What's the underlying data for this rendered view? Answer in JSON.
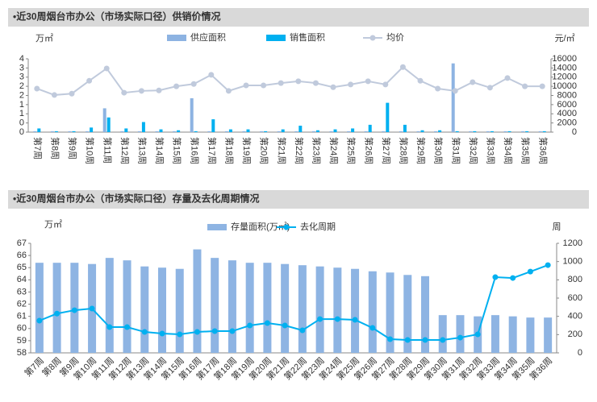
{
  "chart_data": [
    {
      "type": "bar",
      "title": "•近30周烟台市办公（市场实际口径）供销价情况",
      "y_label": "万㎡",
      "y2_label": "元/㎡",
      "categories": [
        "第7周",
        "第8周",
        "第9周",
        "第10周",
        "第11周",
        "第12周",
        "第13周",
        "第14周",
        "第15周",
        "第16周",
        "第17周",
        "第18周",
        "第19周",
        "第20周",
        "第21周",
        "第22周",
        "第23周",
        "第24周",
        "第25周",
        "第26周",
        "第27周",
        "第28周",
        "第29周",
        "第30周",
        "第31周",
        "第32周",
        "第33周",
        "第34周",
        "第35周",
        "第36周"
      ],
      "series": [
        {
          "name": "供应面积",
          "type": "bar",
          "color": "#8db3e2",
          "values": [
            0.05,
            0.05,
            0.05,
            0.05,
            1.3,
            0.05,
            0.05,
            0.05,
            0.05,
            1.85,
            0.05,
            0.05,
            0.05,
            0.05,
            0.05,
            0.05,
            0.05,
            0.05,
            0.05,
            0.05,
            0.05,
            0.05,
            0.05,
            0.05,
            3.75,
            0.05,
            0.05,
            0.05,
            0.05,
            0.05
          ]
        },
        {
          "name": "销售面积",
          "type": "bar",
          "color": "#00b0f0",
          "values": [
            0.2,
            0.05,
            0.05,
            0.25,
            0.8,
            0.2,
            0.55,
            0.15,
            0.1,
            0.05,
            0.7,
            0.15,
            0.15,
            0.05,
            0.15,
            0.35,
            0.1,
            0.15,
            0.2,
            0.4,
            1.6,
            0.4,
            0.1,
            0.1,
            0.05,
            0.05,
            0.05,
            0.05,
            0.05,
            0.05
          ]
        },
        {
          "name": "均价",
          "type": "line",
          "axis": "y2",
          "color": "#c0cadc",
          "values": [
            9500,
            8100,
            8400,
            11200,
            13900,
            8600,
            9000,
            9100,
            10000,
            10500,
            12500,
            9000,
            10200,
            10200,
            10700,
            11100,
            10700,
            9800,
            10400,
            11100,
            10400,
            14200,
            11200,
            9500,
            9000,
            10900,
            9700,
            11800,
            10000,
            10000
          ]
        }
      ],
      "ylim": [
        0,
        4
      ],
      "yticks": [
        0,
        {
          "value": 0.5,
          "label": "0"
        },
        1,
        {
          "value": 1.5,
          "label": "1"
        },
        2,
        {
          "value": 2.5,
          "label": "2"
        },
        3,
        {
          "value": 3.5,
          "label": "3"
        },
        4
      ],
      "y2lim": [
        0,
        16000
      ],
      "y2ticks": [
        0,
        2000,
        4000,
        6000,
        8000,
        10000,
        12000,
        14000,
        16000
      ],
      "grid": false
    },
    {
      "type": "bar",
      "title": "•近30周烟台市办公（市场实际口径）存量及去化周期情况",
      "y_label": "万㎡",
      "y2_label": "周",
      "categories": [
        "第7周",
        "第8周",
        "第9周",
        "第10周",
        "第11周",
        "第12周",
        "第13周",
        "第14周",
        "第15周",
        "第16周",
        "第17周",
        "第18周",
        "第19周",
        "第20周",
        "第21周",
        "第22周",
        "第23周",
        "第24周",
        "第25周",
        "第26周",
        "第27周",
        "第28周",
        "第29周",
        "第30周",
        "第31周",
        "第32周",
        "第33周",
        "第34周",
        "第35周",
        "第36周"
      ],
      "series": [
        {
          "name": "存量面积(万㎡)",
          "type": "bar",
          "color": "#8eb4e3",
          "values": [
            65.4,
            65.4,
            65.4,
            65.3,
            65.8,
            65.6,
            65.1,
            65.0,
            64.9,
            66.5,
            65.8,
            65.6,
            65.4,
            65.4,
            65.3,
            65.2,
            65.1,
            65.0,
            64.9,
            64.7,
            64.6,
            64.4,
            64.3,
            61.1,
            61.1,
            61.0,
            61.1,
            61.0,
            60.9,
            60.9
          ]
        },
        {
          "name": "去化周期",
          "type": "line",
          "axis": "y2",
          "color": "#00b0f0",
          "values": [
            353,
            430,
            467,
            485,
            282,
            282,
            229,
            212,
            203,
            229,
            238,
            238,
            300,
            326,
            300,
            247,
            370,
            370,
            362,
            273,
            150,
            141,
            141,
            141,
            167,
            203,
            829,
            820,
            890,
            961
          ]
        }
      ],
      "ylim": [
        58,
        67
      ],
      "yticks": [
        58,
        59,
        60,
        61,
        62,
        63,
        64,
        65,
        66,
        67
      ],
      "y2lim": [
        0,
        1200
      ],
      "y2ticks": [
        0,
        200,
        400,
        600,
        800,
        1000,
        1200
      ],
      "grid": false
    }
  ]
}
